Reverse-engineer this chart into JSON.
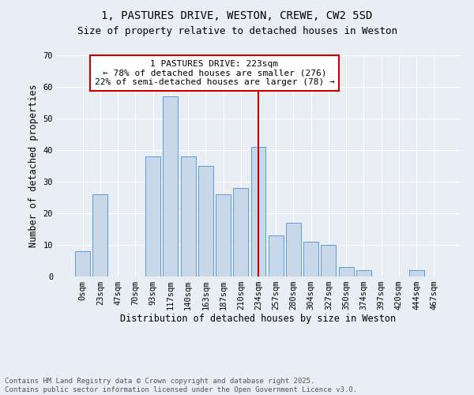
{
  "title": "1, PASTURES DRIVE, WESTON, CREWE, CW2 5SD",
  "subtitle": "Size of property relative to detached houses in Weston",
  "xlabel": "Distribution of detached houses by size in Weston",
  "ylabel": "Number of detached properties",
  "bar_color": "#c8d8e8",
  "bar_edge_color": "#5b9bd5",
  "background_color": "#e8eef4",
  "plot_bg_color": "#e8eef4",
  "categories": [
    "0sqm",
    "23sqm",
    "47sqm",
    "70sqm",
    "93sqm",
    "117sqm",
    "140sqm",
    "163sqm",
    "187sqm",
    "210sqm",
    "234sqm",
    "257sqm",
    "280sqm",
    "304sqm",
    "327sqm",
    "350sqm",
    "374sqm",
    "397sqm",
    "420sqm",
    "444sqm",
    "467sqm"
  ],
  "values": [
    8,
    26,
    0,
    0,
    38,
    57,
    38,
    35,
    26,
    28,
    41,
    13,
    17,
    11,
    10,
    3,
    2,
    0,
    0,
    2,
    0
  ],
  "vline_x": 10.0,
  "vline_color": "#cc0000",
  "annotation_text": "1 PASTURES DRIVE: 223sqm\n← 78% of detached houses are smaller (276)\n22% of semi-detached houses are larger (78) →",
  "annotation_box_color": "#ffffff",
  "annotation_box_edge": "#cc0000",
  "ylim": [
    0,
    70
  ],
  "yticks": [
    0,
    10,
    20,
    30,
    40,
    50,
    60,
    70
  ],
  "footnote": "Contains HM Land Registry data © Crown copyright and database right 2025.\nContains public sector information licensed under the Open Government Licence v3.0.",
  "title_fontsize": 10,
  "subtitle_fontsize": 9,
  "axis_label_fontsize": 8.5,
  "tick_fontsize": 7.5,
  "annotation_fontsize": 8,
  "footnote_fontsize": 6.5
}
